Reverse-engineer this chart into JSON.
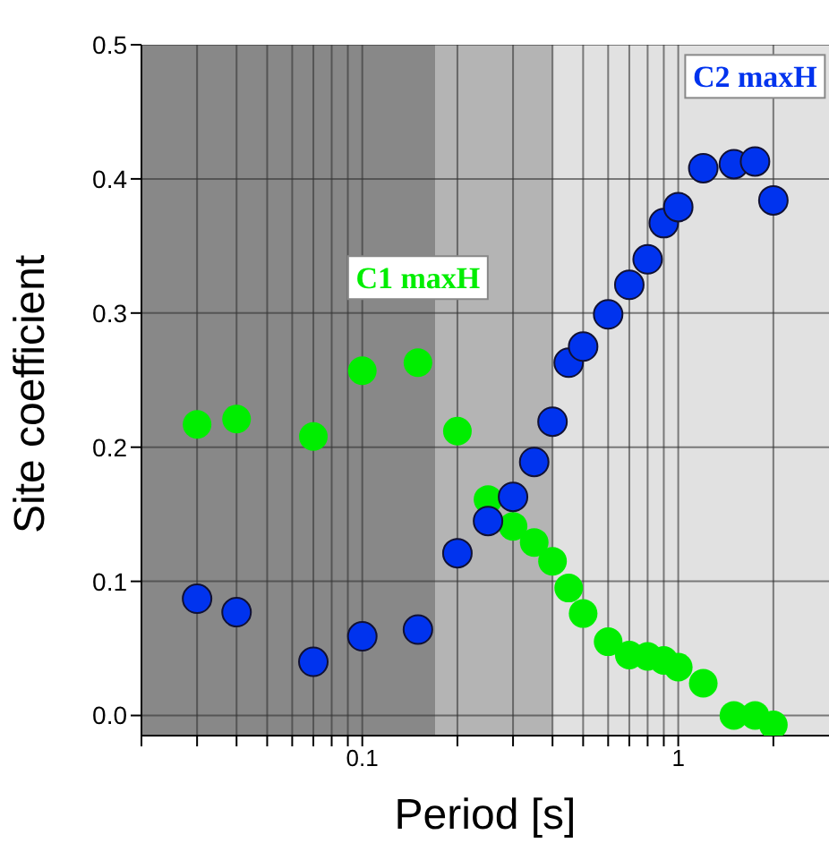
{
  "chart_data": {
    "type": "scatter",
    "xlabel": "Period [s]",
    "ylabel": "Site coefficient",
    "log": "x",
    "grid": true,
    "legend": false,
    "marker": "circle",
    "xlim": [
      0.02,
      3
    ],
    "ylim": [
      -0.015,
      0.5
    ],
    "xticks": [
      {
        "value": 0.02,
        "label": null
      },
      {
        "value": 0.03,
        "label": null
      },
      {
        "value": 0.04,
        "label": null
      },
      {
        "value": 0.05,
        "label": null
      },
      {
        "value": 0.06,
        "label": null
      },
      {
        "value": 0.07,
        "label": null
      },
      {
        "value": 0.08,
        "label": null
      },
      {
        "value": 0.09,
        "label": null
      },
      {
        "value": 0.1,
        "label": "0.1"
      },
      {
        "value": 0.2,
        "label": null
      },
      {
        "value": 0.3,
        "label": null
      },
      {
        "value": 0.4,
        "label": null
      },
      {
        "value": 0.5,
        "label": null
      },
      {
        "value": 0.6,
        "label": null
      },
      {
        "value": 0.7,
        "label": null
      },
      {
        "value": 0.8,
        "label": null
      },
      {
        "value": 0.9,
        "label": null
      },
      {
        "value": 1,
        "label": "1"
      },
      {
        "value": 2,
        "label": null
      }
    ],
    "yticks": [
      {
        "value": 0,
        "label": "0.0"
      },
      {
        "value": 0.1,
        "label": "0.1"
      },
      {
        "value": 0.2,
        "label": "0.2"
      },
      {
        "value": 0.3,
        "label": "0.3"
      },
      {
        "value": 0.4,
        "label": "0.4"
      },
      {
        "value": 0.5,
        "label": "0.5"
      }
    ],
    "x": [
      0.03,
      0.04,
      0.07,
      0.1,
      0.15,
      0.2,
      0.25,
      0.3,
      0.35,
      0.4,
      0.45,
      0.5,
      0.6,
      0.7,
      0.8,
      0.9,
      1.0,
      1.2,
      1.5,
      1.75,
      2.0
    ],
    "bands": [
      {
        "axis": "x",
        "from": 0.02,
        "to": 0.17,
        "color": "#888888"
      },
      {
        "axis": "x",
        "from": 0.17,
        "to": 0.4,
        "color": "#b4b4b4"
      },
      {
        "axis": "x",
        "from": 0.4,
        "to": 3,
        "color": "#e1e1e1"
      }
    ],
    "series": [
      {
        "name": "C1 maxH",
        "color": "#00ee00",
        "values": [
          0.217,
          0.221,
          0.208,
          0.257,
          0.263,
          0.212,
          0.161,
          0.141,
          0.129,
          0.115,
          0.095,
          0.076,
          0.055,
          0.045,
          0.044,
          0.041,
          0.036,
          0.024,
          0.0,
          0.0,
          -0.007
        ]
      },
      {
        "name": "C2 maxH",
        "color": "#0033ee",
        "values": [
          0.087,
          0.077,
          0.04,
          0.059,
          0.064,
          0.121,
          0.145,
          0.163,
          0.189,
          0.219,
          0.263,
          0.275,
          0.299,
          0.321,
          0.34,
          0.367,
          0.379,
          0.408,
          0.411,
          0.413,
          0.384
        ]
      }
    ]
  }
}
